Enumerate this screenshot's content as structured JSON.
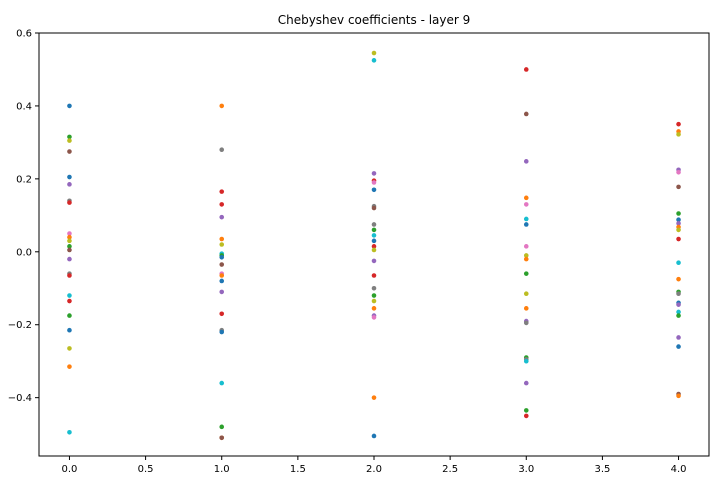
{
  "chart_data": {
    "type": "scatter",
    "title": "Chebyshev coefficients - layer 9",
    "xlabel": "",
    "ylabel": "",
    "xlim": [
      -0.2,
      4.2
    ],
    "ylim": [
      -0.56,
      0.6
    ],
    "xticks": [
      0.0,
      0.5,
      1.0,
      1.5,
      2.0,
      2.5,
      3.0,
      3.5,
      4.0
    ],
    "xtick_labels": [
      "0.0",
      "0.5",
      "1.0",
      "1.5",
      "2.0",
      "2.5",
      "3.0",
      "3.5",
      "4.0"
    ],
    "yticks": [
      -0.4,
      -0.2,
      0.0,
      0.2,
      0.4,
      0.6
    ],
    "ytick_labels": [
      "−0.4",
      "−0.2",
      "0.0",
      "0.2",
      "0.4",
      "0.6"
    ],
    "grid": false,
    "legend": "none",
    "colors": [
      "#1f77b4",
      "#ff7f0e",
      "#2ca02c",
      "#d62728",
      "#9467bd",
      "#8c564b",
      "#e377c2",
      "#7f7f7f",
      "#bcbd22",
      "#17becf"
    ],
    "points": [
      {
        "x": 0,
        "y": 0.4,
        "c": 0
      },
      {
        "x": 0,
        "y": 0.315,
        "c": 2
      },
      {
        "x": 0,
        "y": 0.305,
        "c": 8
      },
      {
        "x": 0,
        "y": 0.275,
        "c": 5
      },
      {
        "x": 0,
        "y": 0.205,
        "c": 0
      },
      {
        "x": 0,
        "y": 0.185,
        "c": 4
      },
      {
        "x": 0,
        "y": 0.14,
        "c": 7
      },
      {
        "x": 0,
        "y": 0.135,
        "c": 3
      },
      {
        "x": 0,
        "y": 0.05,
        "c": 6
      },
      {
        "x": 0,
        "y": 0.04,
        "c": 1
      },
      {
        "x": 0,
        "y": 0.03,
        "c": 8
      },
      {
        "x": 0,
        "y": 0.015,
        "c": 2
      },
      {
        "x": 0,
        "y": 0.005,
        "c": 5
      },
      {
        "x": 0,
        "y": -0.02,
        "c": 4
      },
      {
        "x": 0,
        "y": -0.06,
        "c": 7
      },
      {
        "x": 0,
        "y": -0.065,
        "c": 3
      },
      {
        "x": 0,
        "y": -0.12,
        "c": 9
      },
      {
        "x": 0,
        "y": -0.135,
        "c": 3
      },
      {
        "x": 0,
        "y": -0.175,
        "c": 2
      },
      {
        "x": 0,
        "y": -0.215,
        "c": 0
      },
      {
        "x": 0,
        "y": -0.265,
        "c": 8
      },
      {
        "x": 0,
        "y": -0.315,
        "c": 1
      },
      {
        "x": 0,
        "y": -0.495,
        "c": 9
      },
      {
        "x": 1,
        "y": 0.4,
        "c": 1
      },
      {
        "x": 1,
        "y": 0.28,
        "c": 7
      },
      {
        "x": 1,
        "y": 0.165,
        "c": 3
      },
      {
        "x": 1,
        "y": 0.13,
        "c": 3
      },
      {
        "x": 1,
        "y": 0.095,
        "c": 4
      },
      {
        "x": 1,
        "y": 0.035,
        "c": 1
      },
      {
        "x": 1,
        "y": 0.02,
        "c": 8
      },
      {
        "x": 1,
        "y": -0.005,
        "c": 9
      },
      {
        "x": 1,
        "y": -0.01,
        "c": 2
      },
      {
        "x": 1,
        "y": -0.015,
        "c": 0
      },
      {
        "x": 1,
        "y": -0.035,
        "c": 5
      },
      {
        "x": 1,
        "y": -0.06,
        "c": 6
      },
      {
        "x": 1,
        "y": -0.065,
        "c": 1
      },
      {
        "x": 1,
        "y": -0.08,
        "c": 0
      },
      {
        "x": 1,
        "y": -0.11,
        "c": 4
      },
      {
        "x": 1,
        "y": -0.17,
        "c": 3
      },
      {
        "x": 1,
        "y": -0.215,
        "c": 7
      },
      {
        "x": 1,
        "y": -0.22,
        "c": 0
      },
      {
        "x": 1,
        "y": -0.36,
        "c": 9
      },
      {
        "x": 1,
        "y": -0.48,
        "c": 2
      },
      {
        "x": 1,
        "y": -0.51,
        "c": 1
      },
      {
        "x": 1,
        "y": -0.51,
        "c": 5
      },
      {
        "x": 2,
        "y": 0.545,
        "c": 8
      },
      {
        "x": 2,
        "y": 0.525,
        "c": 9
      },
      {
        "x": 2,
        "y": 0.215,
        "c": 4
      },
      {
        "x": 2,
        "y": 0.195,
        "c": 3
      },
      {
        "x": 2,
        "y": 0.19,
        "c": 6
      },
      {
        "x": 2,
        "y": 0.17,
        "c": 0
      },
      {
        "x": 2,
        "y": 0.125,
        "c": 7
      },
      {
        "x": 2,
        "y": 0.12,
        "c": 5
      },
      {
        "x": 2,
        "y": 0.075,
        "c": 7
      },
      {
        "x": 2,
        "y": 0.06,
        "c": 2
      },
      {
        "x": 2,
        "y": 0.045,
        "c": 9
      },
      {
        "x": 2,
        "y": 0.03,
        "c": 0
      },
      {
        "x": 2,
        "y": 0.015,
        "c": 3
      },
      {
        "x": 2,
        "y": 0.005,
        "c": 8
      },
      {
        "x": 2,
        "y": -0.025,
        "c": 4
      },
      {
        "x": 2,
        "y": -0.065,
        "c": 3
      },
      {
        "x": 2,
        "y": -0.1,
        "c": 7
      },
      {
        "x": 2,
        "y": -0.12,
        "c": 2
      },
      {
        "x": 2,
        "y": -0.135,
        "c": 8
      },
      {
        "x": 2,
        "y": -0.155,
        "c": 1
      },
      {
        "x": 2,
        "y": -0.175,
        "c": 4
      },
      {
        "x": 2,
        "y": -0.18,
        "c": 6
      },
      {
        "x": 2,
        "y": -0.4,
        "c": 1
      },
      {
        "x": 2,
        "y": -0.505,
        "c": 0
      },
      {
        "x": 3,
        "y": 0.5,
        "c": 3
      },
      {
        "x": 3,
        "y": 0.378,
        "c": 5
      },
      {
        "x": 3,
        "y": 0.248,
        "c": 4
      },
      {
        "x": 3,
        "y": 0.148,
        "c": 1
      },
      {
        "x": 3,
        "y": 0.13,
        "c": 6
      },
      {
        "x": 3,
        "y": 0.09,
        "c": 9
      },
      {
        "x": 3,
        "y": 0.075,
        "c": 0
      },
      {
        "x": 3,
        "y": 0.015,
        "c": 6
      },
      {
        "x": 3,
        "y": -0.01,
        "c": 8
      },
      {
        "x": 3,
        "y": -0.02,
        "c": 1
      },
      {
        "x": 3,
        "y": -0.06,
        "c": 2
      },
      {
        "x": 3,
        "y": -0.115,
        "c": 8
      },
      {
        "x": 3,
        "y": -0.155,
        "c": 1
      },
      {
        "x": 3,
        "y": -0.19,
        "c": 4
      },
      {
        "x": 3,
        "y": -0.195,
        "c": 7
      },
      {
        "x": 3,
        "y": -0.29,
        "c": 2
      },
      {
        "x": 3,
        "y": -0.295,
        "c": 7
      },
      {
        "x": 3,
        "y": -0.3,
        "c": 9
      },
      {
        "x": 3,
        "y": -0.36,
        "c": 4
      },
      {
        "x": 3,
        "y": -0.435,
        "c": 2
      },
      {
        "x": 3,
        "y": -0.45,
        "c": 3
      },
      {
        "x": 4,
        "y": 0.35,
        "c": 3
      },
      {
        "x": 4,
        "y": 0.33,
        "c": 1
      },
      {
        "x": 4,
        "y": 0.322,
        "c": 8
      },
      {
        "x": 4,
        "y": 0.225,
        "c": 4
      },
      {
        "x": 4,
        "y": 0.218,
        "c": 6
      },
      {
        "x": 4,
        "y": 0.178,
        "c": 5
      },
      {
        "x": 4,
        "y": 0.105,
        "c": 2
      },
      {
        "x": 4,
        "y": 0.088,
        "c": 0
      },
      {
        "x": 4,
        "y": 0.078,
        "c": 4
      },
      {
        "x": 4,
        "y": 0.068,
        "c": 1
      },
      {
        "x": 4,
        "y": 0.06,
        "c": 8
      },
      {
        "x": 4,
        "y": 0.035,
        "c": 3
      },
      {
        "x": 4,
        "y": -0.03,
        "c": 9
      },
      {
        "x": 4,
        "y": -0.075,
        "c": 1
      },
      {
        "x": 4,
        "y": -0.11,
        "c": 2
      },
      {
        "x": 4,
        "y": -0.115,
        "c": 7
      },
      {
        "x": 4,
        "y": -0.14,
        "c": 0
      },
      {
        "x": 4,
        "y": -0.145,
        "c": 4
      },
      {
        "x": 4,
        "y": -0.165,
        "c": 9
      },
      {
        "x": 4,
        "y": -0.175,
        "c": 2
      },
      {
        "x": 4,
        "y": -0.235,
        "c": 4
      },
      {
        "x": 4,
        "y": -0.26,
        "c": 0
      },
      {
        "x": 4,
        "y": -0.39,
        "c": 5
      },
      {
        "x": 4,
        "y": -0.395,
        "c": 1
      }
    ]
  }
}
